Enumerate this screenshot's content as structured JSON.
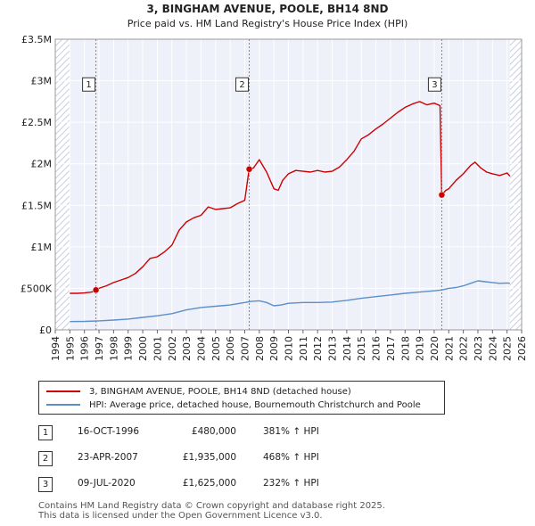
{
  "chart_data": {
    "type": "line",
    "title": "3, BINGHAM AVENUE, POOLE, BH14 8ND",
    "subtitle": "Price paid vs. HM Land Registry's House Price Index (HPI)",
    "xlabel": "",
    "ylabel": "",
    "xlim": [
      1994,
      2026
    ],
    "ylim": [
      0,
      3500000
    ],
    "x_ticks": [
      "1994",
      "1995",
      "1996",
      "1997",
      "1998",
      "1999",
      "2000",
      "2001",
      "2002",
      "2003",
      "2004",
      "2005",
      "2006",
      "2007",
      "2008",
      "2009",
      "2010",
      "2011",
      "2012",
      "2013",
      "2014",
      "2015",
      "2016",
      "2017",
      "2018",
      "2019",
      "2020",
      "2021",
      "2022",
      "2023",
      "2024",
      "2025",
      "2026"
    ],
    "y_ticks": [
      {
        "value": 0,
        "label": "£0"
      },
      {
        "value": 500000,
        "label": "£500K"
      },
      {
        "value": 1000000,
        "label": "£1M"
      },
      {
        "value": 1500000,
        "label": "£1.5M"
      },
      {
        "value": 2000000,
        "label": "£2M"
      },
      {
        "value": 2500000,
        "label": "£2.5M"
      },
      {
        "value": 3000000,
        "label": "£3M"
      },
      {
        "value": 3500000,
        "label": "£3.5M"
      }
    ],
    "grid": true,
    "series": [
      {
        "name": "3, BINGHAM AVENUE, POOLE, BH14 8ND (detached house)",
        "color": "#cc0000",
        "x": [
          1995.0,
          1995.5,
          1996.0,
          1996.5,
          1996.79,
          1997.0,
          1997.5,
          1998.0,
          1998.5,
          1999.0,
          1999.5,
          2000.0,
          2000.5,
          2001.0,
          2001.5,
          2002.0,
          2002.5,
          2003.0,
          2003.5,
          2004.0,
          2004.5,
          2005.0,
          2005.5,
          2006.0,
          2006.5,
          2007.0,
          2007.3,
          2007.6,
          2008.0,
          2008.5,
          2009.0,
          2009.3,
          2009.6,
          2010.0,
          2010.5,
          2011.0,
          2011.5,
          2012.0,
          2012.5,
          2013.0,
          2013.5,
          2014.0,
          2014.5,
          2015.0,
          2015.5,
          2016.0,
          2016.5,
          2017.0,
          2017.5,
          2018.0,
          2018.5,
          2019.0,
          2019.5,
          2020.0,
          2020.4,
          2020.52,
          2020.8,
          2021.0,
          2021.5,
          2022.0,
          2022.5,
          2022.8,
          2023.2,
          2023.6,
          2024.0,
          2024.5,
          2025.0,
          2025.2
        ],
        "values": [
          440000,
          440000,
          445000,
          455000,
          480000,
          500000,
          530000,
          570000,
          600000,
          630000,
          680000,
          760000,
          860000,
          880000,
          940000,
          1020000,
          1200000,
          1300000,
          1350000,
          1380000,
          1480000,
          1450000,
          1460000,
          1470000,
          1520000,
          1560000,
          1935000,
          1950000,
          2050000,
          1900000,
          1700000,
          1680000,
          1800000,
          1880000,
          1920000,
          1910000,
          1900000,
          1920000,
          1900000,
          1910000,
          1960000,
          2050000,
          2150000,
          2300000,
          2350000,
          2420000,
          2480000,
          2550000,
          2620000,
          2680000,
          2720000,
          2750000,
          2710000,
          2730000,
          2700000,
          1625000,
          1680000,
          1700000,
          1800000,
          1880000,
          1980000,
          2020000,
          1950000,
          1900000,
          1880000,
          1860000,
          1890000,
          1850000
        ]
      },
      {
        "name": "HPI: Average price, detached house, Bournemouth Christchurch and Poole",
        "color": "#5b8fc9",
        "x": [
          1995.0,
          1996.0,
          1997.0,
          1998.0,
          1999.0,
          2000.0,
          2001.0,
          2002.0,
          2003.0,
          2004.0,
          2005.0,
          2006.0,
          2007.0,
          2007.5,
          2008.0,
          2008.5,
          2009.0,
          2009.5,
          2010.0,
          2011.0,
          2012.0,
          2013.0,
          2014.0,
          2015.0,
          2016.0,
          2017.0,
          2018.0,
          2019.0,
          2020.0,
          2020.5,
          2021.0,
          2021.5,
          2022.0,
          2022.5,
          2023.0,
          2023.5,
          2024.0,
          2024.5,
          2025.0,
          2025.2
        ],
        "values": [
          100000,
          102000,
          108000,
          118000,
          130000,
          150000,
          170000,
          195000,
          240000,
          270000,
          285000,
          300000,
          330000,
          345000,
          350000,
          330000,
          290000,
          300000,
          320000,
          330000,
          330000,
          335000,
          355000,
          380000,
          400000,
          420000,
          440000,
          455000,
          470000,
          480000,
          500000,
          510000,
          530000,
          560000,
          590000,
          580000,
          570000,
          560000,
          565000,
          560000
        ]
      }
    ],
    "sales": [
      {
        "label": "1",
        "x": 1996.79,
        "value": 480000
      },
      {
        "label": "2",
        "x": 2007.31,
        "value": 1935000
      },
      {
        "label": "3",
        "x": 2020.52,
        "value": 1625000
      }
    ],
    "marker_label_value": 2950000
  },
  "legend": {
    "property": "3, BINGHAM AVENUE, POOLE, BH14 8ND (detached house)",
    "hpi": "HPI: Average price, detached house, Bournemouth Christchurch and Poole"
  },
  "sales_table": [
    {
      "num": "1",
      "date": "16-OCT-1996",
      "price": "£480,000",
      "hpi": "381% ↑ HPI"
    },
    {
      "num": "2",
      "date": "23-APR-2007",
      "price": "£1,935,000",
      "hpi": "468% ↑ HPI"
    },
    {
      "num": "3",
      "date": "09-JUL-2020",
      "price": "£1,625,000",
      "hpi": "232% ↑ HPI"
    }
  ],
  "footer": {
    "line1": "Contains HM Land Registry data © Crown copyright and database right 2025.",
    "line2": "This data is licensed under the Open Government Licence v3.0."
  },
  "colors": {
    "property": "#cc0000",
    "hpi": "#5b8fc9",
    "plot_bg": "#eef1f9",
    "hatch": "#c8cde0",
    "grid": "#ffffff",
    "marker_line": "#e06060"
  }
}
